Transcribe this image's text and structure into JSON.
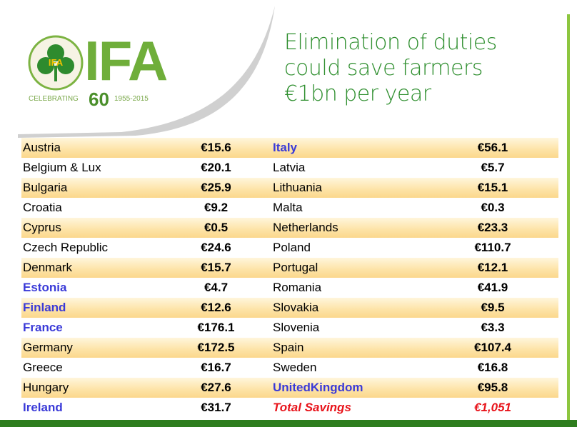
{
  "logo": {
    "name": "IFA",
    "celebrating": "CELEBRATING",
    "years_number": "60",
    "years": "1955-2015"
  },
  "title": [
    "Elimination of duties",
    "could save farmers",
    "€1bn per year"
  ],
  "table": {
    "rows": [
      {
        "cells": [
          "Austria",
          "€15.6",
          "Italy",
          "€56.1"
        ],
        "blue": [
          false,
          true
        ]
      },
      {
        "cells": [
          "Belgium & Lux",
          "€20.1",
          "Latvia",
          "€5.7"
        ],
        "blue": [
          false,
          false
        ]
      },
      {
        "cells": [
          "Bulgaria",
          "€25.9",
          "Lithuania",
          "€15.1"
        ],
        "blue": [
          false,
          false
        ]
      },
      {
        "cells": [
          "Croatia",
          "€9.2",
          "Malta",
          "€0.3"
        ],
        "blue": [
          false,
          false
        ]
      },
      {
        "cells": [
          "Cyprus",
          "€0.5",
          "Netherlands",
          "€23.3"
        ],
        "blue": [
          false,
          false
        ]
      },
      {
        "cells": [
          "Czech Republic",
          "€24.6",
          "Poland",
          "€110.7"
        ],
        "blue": [
          false,
          false
        ]
      },
      {
        "cells": [
          "Denmark",
          "€15.7",
          "Portugal",
          "€12.1"
        ],
        "blue": [
          false,
          false
        ]
      },
      {
        "cells": [
          "Estonia",
          "€4.7",
          "Romania",
          "€41.9"
        ],
        "blue": [
          true,
          false
        ]
      },
      {
        "cells": [
          "Finland",
          "€12.6",
          "Slovakia",
          "€9.5"
        ],
        "blue": [
          true,
          false
        ]
      },
      {
        "cells": [
          "France",
          "€176.1",
          "Slovenia",
          "€3.3"
        ],
        "blue": [
          true,
          false
        ]
      },
      {
        "cells": [
          "Germany",
          "€172.5",
          "Spain",
          "€107.4"
        ],
        "blue": [
          false,
          false
        ]
      },
      {
        "cells": [
          "Greece",
          "€16.7",
          "Sweden",
          "€16.8"
        ],
        "blue": [
          false,
          false
        ]
      },
      {
        "cells": [
          "Hungary",
          "€27.6",
          "UnitedKingdom",
          "€95.8"
        ],
        "blue": [
          false,
          true
        ]
      },
      {
        "cells": [
          "Ireland",
          "€31.7",
          "Total Savings",
          "€1,051"
        ],
        "blue": [
          true,
          false
        ],
        "total_right": true
      }
    ]
  }
}
